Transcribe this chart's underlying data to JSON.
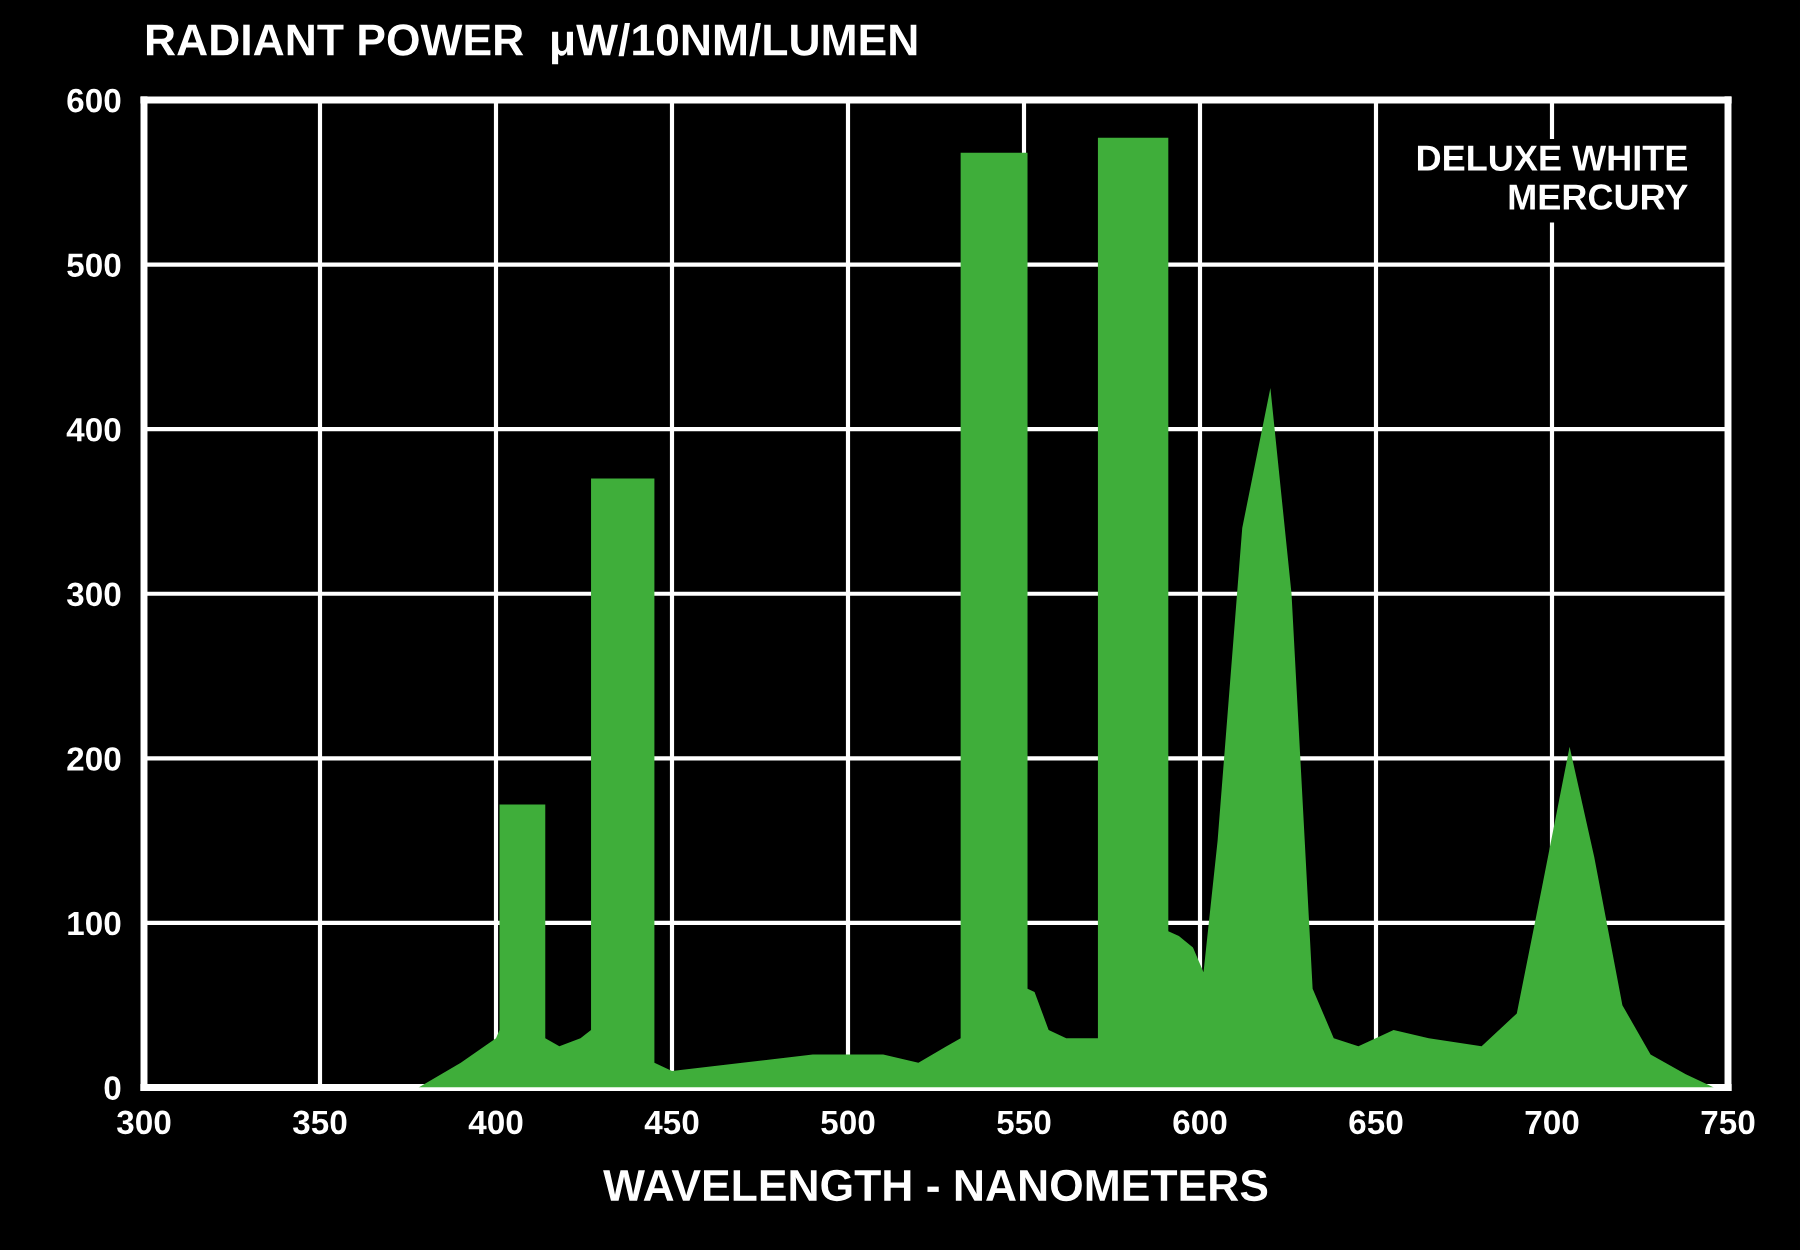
{
  "chart_data": {
    "type": "area",
    "title": "RADIANT POWER  μW/10NM/LUMEN",
    "xlabel": "WAVELENGTH - NANOMETERS",
    "annotations": [
      "DELUXE WHITE\nMERCURY"
    ],
    "x": [
      378,
      390,
      400,
      401,
      401,
      414,
      414,
      418,
      424,
      427,
      427,
      445,
      445,
      450,
      470,
      490,
      510,
      520,
      528,
      532,
      532,
      551,
      551,
      553,
      557,
      562,
      571,
      571,
      591,
      591,
      594,
      598,
      601,
      605,
      612,
      620,
      626,
      632,
      638,
      645,
      655,
      665,
      680,
      690,
      697,
      705,
      712,
      720,
      728,
      738,
      746
    ],
    "series": [
      {
        "color": "#3fae3a",
        "values": [
          0,
          15,
          30,
          35,
          172,
          172,
          30,
          25,
          30,
          35,
          370,
          370,
          15,
          10,
          15,
          20,
          20,
          15,
          25,
          30,
          568,
          568,
          60,
          58,
          35,
          30,
          30,
          577,
          577,
          95,
          92,
          85,
          70,
          150,
          340,
          425,
          300,
          60,
          30,
          25,
          35,
          30,
          25,
          45,
          120,
          207,
          140,
          50,
          20,
          8,
          0
        ]
      }
    ],
    "xlim": [
      300,
      750
    ],
    "ylim": [
      0,
      600
    ],
    "xticks": [
      300,
      350,
      400,
      450,
      500,
      550,
      600,
      650,
      700,
      750
    ],
    "yticks": [
      0,
      100,
      200,
      300,
      400,
      500,
      600
    ],
    "grid": true
  }
}
